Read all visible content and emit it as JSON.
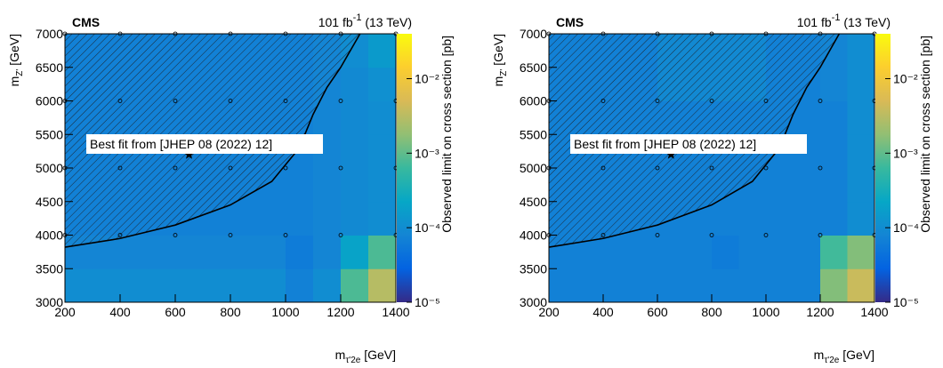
{
  "chart_data": [
    {
      "type": "heatmap",
      "experiment": "CMS",
      "lumi": {
        "value": "101 fb",
        "sup": "-1",
        "energy": " (13 TeV)"
      },
      "xlabel": {
        "main": "m",
        "sub": "τ'2e",
        "unit": " [GeV]"
      },
      "ylabel": {
        "main": "m",
        "sub": "Z'",
        "unit": " [GeV]"
      },
      "zlabel": "Observed limit on cross section [pb]",
      "xbins": [
        200,
        300,
        400,
        500,
        600,
        700,
        800,
        900,
        1000,
        1100,
        1200,
        1300,
        1400
      ],
      "ybins": [
        3000,
        3500,
        4000,
        4500,
        5000,
        5500,
        6000,
        6500,
        7000
      ],
      "z": [
        [
          0.0001,
          0.0001,
          0.0001,
          0.0001,
          0.0001,
          0.0001,
          0.0001,
          0.0001,
          7e-05,
          0.0001,
          0.0008,
          0.003
        ],
        [
          8e-05,
          8e-05,
          8e-05,
          8e-05,
          8e-05,
          8e-05,
          8e-05,
          8e-05,
          6e-05,
          8e-05,
          0.0002,
          0.0008
        ],
        [
          7e-05,
          7e-05,
          7e-05,
          7e-05,
          7e-05,
          7e-05,
          7e-05,
          7e-05,
          7e-05,
          8e-05,
          9e-05,
          0.0001
        ],
        [
          7e-05,
          7e-05,
          7e-05,
          7e-05,
          7e-05,
          7e-05,
          7e-05,
          7e-05,
          7e-05,
          8e-05,
          9e-05,
          0.0001
        ],
        [
          7e-05,
          7e-05,
          7e-05,
          7e-05,
          7e-05,
          7e-05,
          7e-05,
          7e-05,
          7e-05,
          8e-05,
          9e-05,
          0.0001
        ],
        [
          7e-05,
          7e-05,
          7e-05,
          7e-05,
          7e-05,
          7e-05,
          7e-05,
          7e-05,
          7e-05,
          8e-05,
          9e-05,
          0.0001
        ],
        [
          7e-05,
          7e-05,
          7e-05,
          7e-05,
          7e-05,
          7e-05,
          7e-05,
          7e-05,
          7e-05,
          8e-05,
          9e-05,
          0.00011
        ],
        [
          7e-05,
          7e-05,
          7e-05,
          7e-05,
          7e-05,
          7e-05,
          7e-05,
          7e-05,
          7e-05,
          8e-05,
          0.0001,
          0.00015
        ]
      ],
      "colormap": [
        "#352a87",
        "#0363e1",
        "#1485d4",
        "#06a7c6",
        "#38b99e",
        "#92bf73",
        "#d9ba56",
        "#fcce2e",
        "#f9fb0e"
      ],
      "xlim": [
        200,
        1400
      ],
      "ylim": [
        3000,
        7000
      ],
      "zlim": [
        1e-05,
        0.04
      ],
      "zlog": true,
      "xticks": [
        200,
        400,
        600,
        800,
        1000,
        1200,
        1400
      ],
      "yticks": [
        3000,
        3500,
        4000,
        4500,
        5000,
        5500,
        6000,
        6500,
        7000
      ],
      "zticks": [
        {
          "value": 1e-05,
          "label": "10⁻⁵"
        },
        {
          "value": 0.0001,
          "label": "10⁻⁴"
        },
        {
          "value": 0.001,
          "label": "10⁻³"
        },
        {
          "value": 0.01,
          "label": "10⁻²"
        }
      ],
      "scan_x": [
        200,
        400,
        600,
        800,
        1000,
        1200,
        1400
      ],
      "scan_y": [
        4000,
        5000,
        6000,
        7000
      ],
      "contour": {
        "x": [
          200,
          400,
          600,
          800,
          950,
          1050,
          1100,
          1150,
          1200,
          1270
        ],
        "y": [
          3820,
          3950,
          4150,
          4450,
          4800,
          5300,
          5800,
          6200,
          6500,
          7000
        ]
      },
      "best_fit": {
        "x": 650,
        "y": 5200,
        "label": "Best fit from [JHEP 08 (2022) 12]"
      }
    },
    {
      "type": "heatmap",
      "experiment": "CMS",
      "lumi": {
        "value": "101 fb",
        "sup": "-1",
        "energy": " (13 TeV)"
      },
      "xlabel": {
        "main": "m",
        "sub": "τ'2e",
        "unit": " [GeV]"
      },
      "ylabel": {
        "main": "m",
        "sub": "Z'",
        "unit": " [GeV]"
      },
      "zlabel": "Observed limit on cross section [pb]",
      "xbins": [
        200,
        300,
        400,
        500,
        600,
        700,
        800,
        900,
        1000,
        1100,
        1200,
        1300,
        1400
      ],
      "ybins": [
        3000,
        3500,
        4000,
        4500,
        5000,
        5500,
        6000,
        6500,
        7000
      ],
      "z": [
        [
          7e-05,
          7e-05,
          7e-05,
          7e-05,
          7e-05,
          7e-05,
          7e-05,
          7e-05,
          7e-05,
          7e-05,
          0.0015,
          0.004
        ],
        [
          7e-05,
          7e-05,
          7e-05,
          7e-05,
          7e-05,
          7e-05,
          6e-05,
          7e-05,
          7e-05,
          7e-05,
          0.0007,
          0.0015
        ],
        [
          7e-05,
          7e-05,
          7e-05,
          7e-05,
          7e-05,
          7e-05,
          7e-05,
          7e-05,
          7e-05,
          7e-05,
          7e-05,
          0.0001
        ],
        [
          7e-05,
          7e-05,
          7e-05,
          7e-05,
          7e-05,
          7e-05,
          7e-05,
          7e-05,
          7e-05,
          7e-05,
          7e-05,
          0.0001
        ],
        [
          7e-05,
          7e-05,
          7e-05,
          7e-05,
          7e-05,
          7e-05,
          7e-05,
          7e-05,
          7e-05,
          7e-05,
          7e-05,
          0.0001
        ],
        [
          7e-05,
          7e-05,
          7e-05,
          7e-05,
          7e-05,
          7e-05,
          7e-05,
          7e-05,
          7e-05,
          7e-05,
          7e-05,
          0.0001
        ],
        [
          7e-05,
          7e-05,
          7e-05,
          7e-05,
          9e-05,
          9e-05,
          9e-05,
          9e-05,
          7e-05,
          7e-05,
          8e-05,
          0.0001
        ],
        [
          7e-05,
          7e-05,
          7e-05,
          7e-05,
          9e-05,
          9e-05,
          9e-05,
          9e-05,
          7e-05,
          7e-05,
          8e-05,
          0.0001
        ]
      ],
      "colormap": [
        "#352a87",
        "#0363e1",
        "#1485d4",
        "#06a7c6",
        "#38b99e",
        "#92bf73",
        "#d9ba56",
        "#fcce2e",
        "#f9fb0e"
      ],
      "xlim": [
        200,
        1400
      ],
      "ylim": [
        3000,
        7000
      ],
      "zlim": [
        1e-05,
        0.04
      ],
      "zlog": true,
      "xticks": [
        200,
        400,
        600,
        800,
        1000,
        1200,
        1400
      ],
      "yticks": [
        3000,
        3500,
        4000,
        4500,
        5000,
        5500,
        6000,
        6500,
        7000
      ],
      "zticks": [
        {
          "value": 1e-05,
          "label": "10⁻⁵"
        },
        {
          "value": 0.0001,
          "label": "10⁻⁴"
        },
        {
          "value": 0.001,
          "label": "10⁻³"
        },
        {
          "value": 0.01,
          "label": "10⁻²"
        }
      ],
      "scan_x": [
        200,
        400,
        600,
        800,
        1000,
        1200,
        1400
      ],
      "scan_y": [
        4000,
        5000,
        6000,
        7000
      ],
      "contour": {
        "x": [
          200,
          400,
          600,
          800,
          950,
          1050,
          1100,
          1150,
          1200,
          1270
        ],
        "y": [
          3820,
          3950,
          4150,
          4450,
          4800,
          5300,
          5800,
          6200,
          6500,
          7000
        ]
      },
      "best_fit": {
        "x": 650,
        "y": 5200,
        "label": "Best fit from [JHEP 08 (2022) 12]"
      }
    }
  ]
}
